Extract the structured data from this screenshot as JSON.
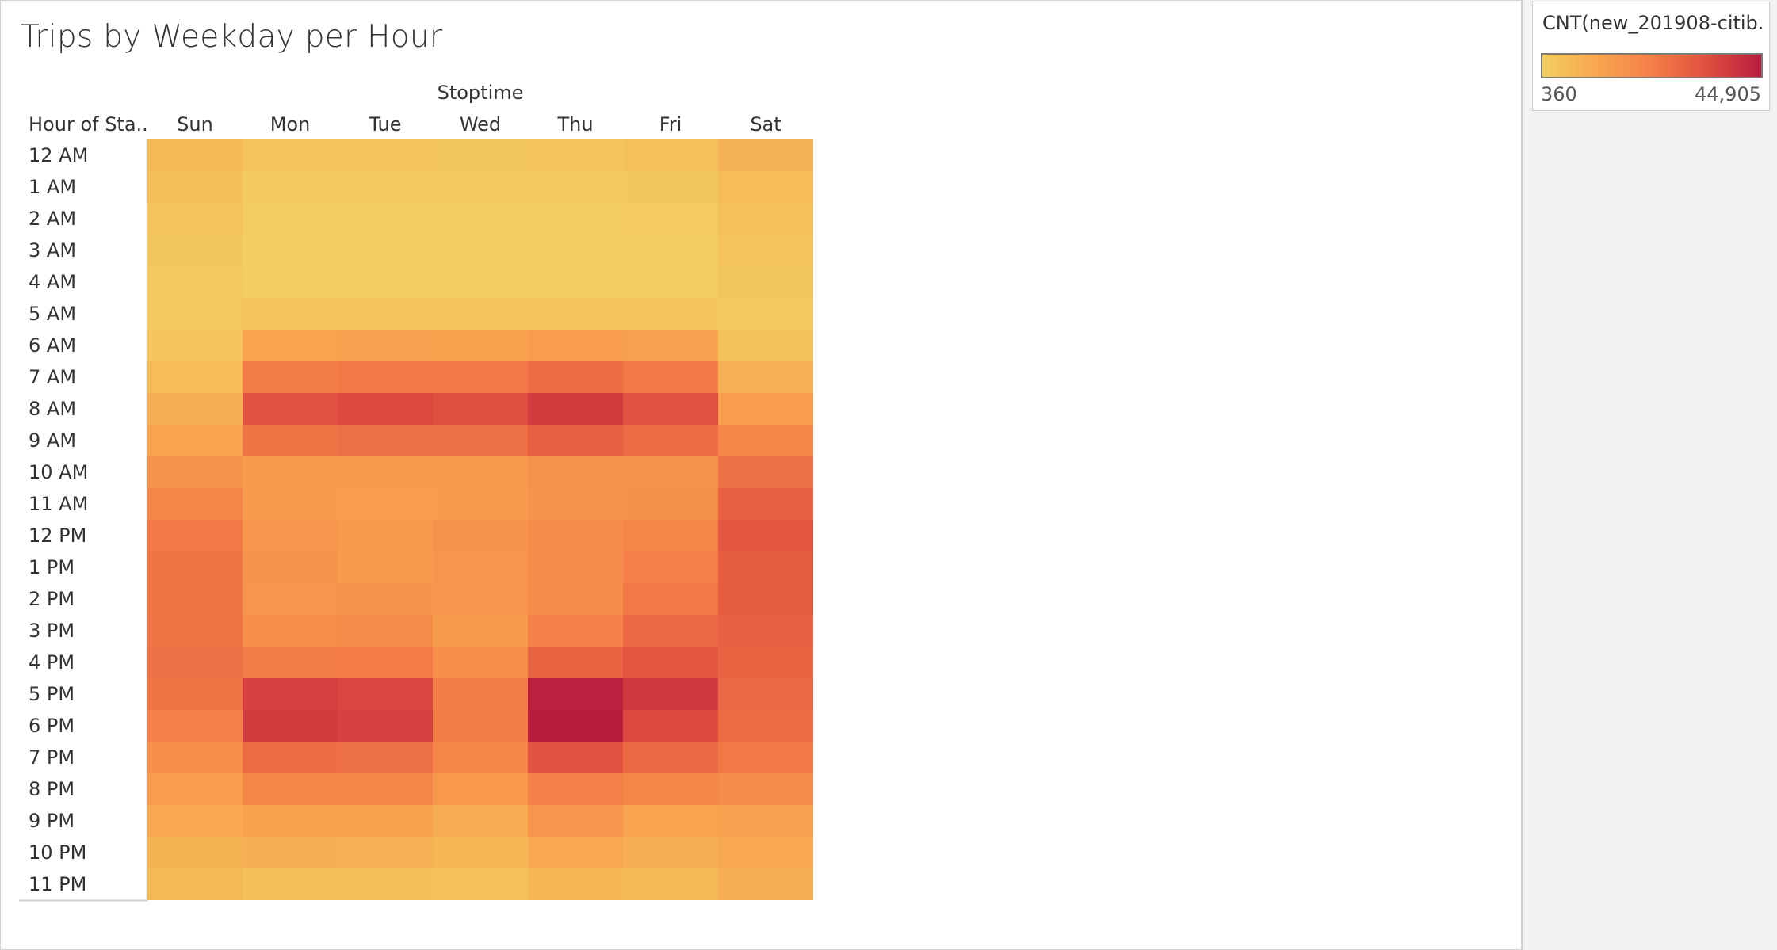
{
  "title": "Trips by Weekday per Hour",
  "chart_data": {
    "type": "heatmap",
    "column_group_label": "Stoptime",
    "row_axis_label": "Hour of Sta..",
    "columns": [
      "Sun",
      "Mon",
      "Tue",
      "Wed",
      "Thu",
      "Fri",
      "Sat"
    ],
    "rows": [
      "12 AM",
      "1 AM",
      "2 AM",
      "3 AM",
      "4 AM",
      "5 AM",
      "6 AM",
      "7 AM",
      "8 AM",
      "9 AM",
      "10 AM",
      "11 AM",
      "12 PM",
      "1 PM",
      "2 PM",
      "3 PM",
      "4 PM",
      "5 PM",
      "6 PM",
      "7 PM",
      "8 PM",
      "9 PM",
      "10 PM",
      "11 PM"
    ],
    "values": [
      [
        6500,
        3300,
        2900,
        2700,
        3000,
        4300,
        7800
      ],
      [
        4500,
        1600,
        1500,
        1400,
        1600,
        2200,
        5500
      ],
      [
        3300,
        900,
        800,
        800,
        900,
        1300,
        4200
      ],
      [
        2400,
        700,
        600,
        600,
        700,
        900,
        3300
      ],
      [
        1800,
        700,
        600,
        600,
        700,
        800,
        2500
      ],
      [
        1800,
        3000,
        2900,
        2800,
        3000,
        3000,
        2000
      ],
      [
        3000,
        12000,
        13000,
        12500,
        14000,
        13000,
        3700
      ],
      [
        5500,
        23000,
        24000,
        24000,
        27000,
        24000,
        8500
      ],
      [
        9000,
        33000,
        35000,
        34000,
        38000,
        33000,
        14000
      ],
      [
        12000,
        25000,
        26000,
        26000,
        30000,
        27000,
        20000
      ],
      [
        17000,
        15000,
        14500,
        15000,
        17000,
        16500,
        26000
      ],
      [
        21000,
        14500,
        14000,
        14500,
        17000,
        17500,
        30000
      ],
      [
        24000,
        16000,
        15000,
        17000,
        19000,
        21000,
        32000
      ],
      [
        25000,
        16500,
        15000,
        16000,
        19000,
        22500,
        31000
      ],
      [
        25000,
        16000,
        17000,
        16000,
        19000,
        24000,
        31000
      ],
      [
        25500,
        18000,
        19000,
        14500,
        22000,
        28000,
        30000
      ],
      [
        26000,
        23000,
        23500,
        18000,
        29000,
        32000,
        29000
      ],
      [
        25000,
        37000,
        36000,
        23000,
        44000,
        38500,
        28000
      ],
      [
        22000,
        38000,
        37000,
        23000,
        44905,
        35000,
        27000
      ],
      [
        18000,
        27000,
        26500,
        21000,
        33000,
        27500,
        24000
      ],
      [
        14000,
        20000,
        20500,
        15500,
        22000,
        20000,
        18500
      ],
      [
        11000,
        12500,
        12500,
        9500,
        16000,
        12000,
        13000
      ],
      [
        8000,
        9000,
        8500,
        7000,
        11000,
        9000,
        11000
      ],
      [
        6500,
        4700,
        4400,
        4300,
        6800,
        6000,
        9000
      ]
    ],
    "color_scale": {
      "field": "CNT(new_201908-citib...",
      "min_label": "360",
      "max_label": "44,905",
      "min": 360,
      "max": 44905,
      "stops": [
        "#f2ce60",
        "#f8a64f",
        "#f47f47",
        "#e0503f",
        "#b81d3e"
      ]
    }
  }
}
